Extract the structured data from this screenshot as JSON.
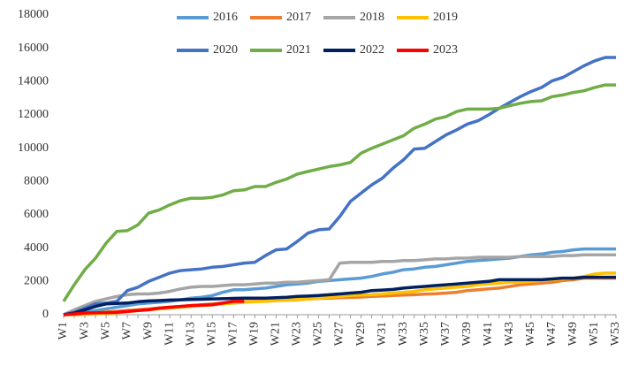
{
  "chart_data": {
    "type": "line",
    "categories": [
      "W1",
      null,
      "W3",
      null,
      "W5",
      null,
      "W7",
      null,
      "W9",
      null,
      "W11",
      null,
      "W13",
      null,
      "W15",
      null,
      "W17",
      null,
      "W19",
      null,
      "W21",
      null,
      "W23",
      null,
      "W25",
      null,
      "W27",
      null,
      "W29",
      null,
      "W31",
      null,
      "W33",
      null,
      "W35",
      null,
      "W37",
      null,
      "W39",
      null,
      "W41",
      null,
      "W43",
      null,
      "W45",
      null,
      "W47",
      null,
      "W49",
      null,
      "W51",
      null,
      "W53"
    ],
    "ylim": [
      0,
      18000
    ],
    "yticks": [
      0,
      2000,
      4000,
      6000,
      8000,
      10000,
      12000,
      14000,
      16000,
      18000
    ],
    "grid": false,
    "legend": "top",
    "series": [
      {
        "name": "2016",
        "color": "#5b9bd5",
        "values": [
          0,
          50,
          150,
          250,
          350,
          450,
          550,
          650,
          700,
          750,
          800,
          900,
          1000,
          1050,
          1150,
          1350,
          1500,
          1500,
          1550,
          1600,
          1700,
          1800,
          1850,
          1900,
          2000,
          2050,
          2100,
          2150,
          2200,
          2300,
          2450,
          2550,
          2700,
          2750,
          2850,
          2900,
          3000,
          3100,
          3200,
          3250,
          3300,
          3350,
          3400,
          3500,
          3600,
          3650,
          3750,
          3800,
          3900,
          3950,
          3950,
          3950,
          3950
        ]
      },
      {
        "name": "2017",
        "color": "#ed7d31",
        "values": [
          0,
          40,
          80,
          120,
          160,
          200,
          250,
          300,
          350,
          400,
          450,
          500,
          550,
          600,
          650,
          700,
          750,
          780,
          800,
          820,
          850,
          870,
          900,
          950,
          980,
          1000,
          1020,
          1040,
          1060,
          1100,
          1120,
          1150,
          1180,
          1200,
          1230,
          1260,
          1300,
          1350,
          1450,
          1500,
          1550,
          1600,
          1700,
          1800,
          1850,
          1900,
          1950,
          2050,
          2100,
          2200,
          2200,
          2200,
          2200
        ]
      },
      {
        "name": "2018",
        "color": "#a5a5a5",
        "values": [
          0,
          300,
          550,
          800,
          950,
          1100,
          1200,
          1250,
          1250,
          1300,
          1400,
          1550,
          1650,
          1700,
          1700,
          1750,
          1800,
          1800,
          1850,
          1900,
          1900,
          1950,
          1950,
          2000,
          2050,
          2100,
          3100,
          3150,
          3150,
          3150,
          3200,
          3200,
          3250,
          3250,
          3300,
          3350,
          3350,
          3400,
          3400,
          3450,
          3450,
          3450,
          3450,
          3500,
          3500,
          3500,
          3500,
          3550,
          3550,
          3600,
          3600,
          3600,
          3600
        ]
      },
      {
        "name": "2019",
        "color": "#ffc000",
        "values": [
          0,
          0,
          20,
          50,
          80,
          120,
          180,
          250,
          300,
          350,
          400,
          450,
          500,
          550,
          600,
          650,
          700,
          750,
          780,
          800,
          850,
          880,
          920,
          950,
          1000,
          1050,
          1100,
          1150,
          1180,
          1200,
          1250,
          1300,
          1350,
          1400,
          1500,
          1550,
          1600,
          1650,
          1700,
          1800,
          1850,
          1900,
          1950,
          1950,
          2000,
          2050,
          2100,
          2150,
          2200,
          2300,
          2450,
          2500,
          2500
        ]
      },
      {
        "name": "2020",
        "color": "#4472c4",
        "values": [
          0,
          150,
          400,
          650,
          700,
          800,
          1450,
          1650,
          2000,
          2250,
          2500,
          2650,
          2700,
          2750,
          2850,
          2900,
          3000,
          3100,
          3150,
          3550,
          3900,
          3950,
          4400,
          4900,
          5100,
          5150,
          5900,
          6800,
          7300,
          7800,
          8200,
          8800,
          9300,
          9950,
          10000,
          10400,
          10800,
          11100,
          11450,
          11650,
          12000,
          12400,
          12750,
          13100,
          13400,
          13650,
          14050,
          14250,
          14600,
          14950,
          15250,
          15450,
          15450
        ]
      },
      {
        "name": "2021",
        "color": "#70ad47",
        "values": [
          800,
          1800,
          2700,
          3400,
          4300,
          5000,
          5050,
          5400,
          6100,
          6300,
          6600,
          6850,
          7000,
          7000,
          7050,
          7200,
          7450,
          7500,
          7700,
          7700,
          7950,
          8150,
          8450,
          8600,
          8750,
          8900,
          9000,
          9150,
          9700,
          10000,
          10250,
          10500,
          10750,
          11200,
          11450,
          11750,
          11900,
          12200,
          12350,
          12350,
          12350,
          12400,
          12550,
          12700,
          12800,
          12850,
          13100,
          13200,
          13350,
          13450,
          13650,
          13800,
          13800
        ]
      },
      {
        "name": "2022",
        "color": "#002060",
        "values": [
          0,
          100,
          300,
          500,
          650,
          680,
          700,
          780,
          830,
          850,
          880,
          900,
          920,
          930,
          950,
          960,
          980,
          1000,
          1000,
          1000,
          1020,
          1050,
          1100,
          1120,
          1150,
          1200,
          1250,
          1300,
          1350,
          1450,
          1480,
          1520,
          1600,
          1650,
          1700,
          1750,
          1800,
          1850,
          1900,
          1950,
          2000,
          2100,
          2100,
          2100,
          2100,
          2100,
          2150,
          2200,
          2200,
          2250,
          2250,
          2250,
          2250
        ]
      },
      {
        "name": "2023",
        "color": "#ff0000",
        "values": [
          0,
          50,
          100,
          120,
          130,
          150,
          200,
          250,
          300,
          400,
          450,
          500,
          550,
          580,
          600,
          700,
          800,
          800,
          null,
          null,
          null,
          null,
          null,
          null,
          null,
          null,
          null,
          null,
          null,
          null,
          null,
          null,
          null,
          null,
          null,
          null,
          null,
          null,
          null,
          null,
          null,
          null,
          null,
          null,
          null,
          null,
          null,
          null,
          null,
          null,
          null,
          null,
          null
        ]
      }
    ]
  }
}
